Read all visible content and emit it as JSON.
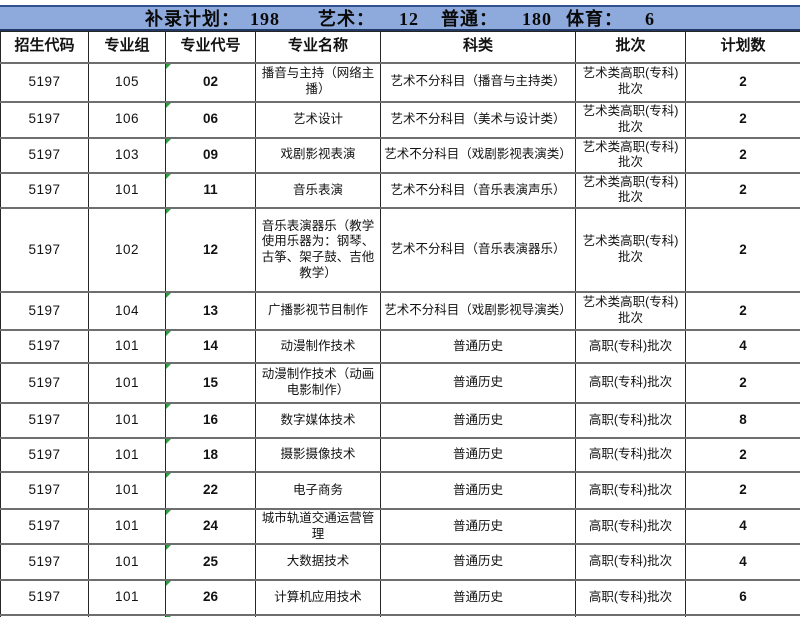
{
  "summary_bar": {
    "items": [
      {
        "label": "补录计划：",
        "value": "198"
      },
      {
        "label": "艺术：",
        "value": "12"
      },
      {
        "label": "普通：",
        "value": "180"
      },
      {
        "label": "体育：",
        "value": "6"
      }
    ]
  },
  "table": {
    "headers": [
      "招生代码",
      "专业组",
      "专业代号",
      "专业名称",
      "科类",
      "批次",
      "计划数"
    ],
    "rows": [
      [
        "5197",
        "105",
        "02",
        "播音与主持（网络主播）",
        "艺术不分科目（播音与主持类）",
        "艺术类高职(专科)批次",
        "2"
      ],
      [
        "5197",
        "106",
        "06",
        "艺术设计",
        "艺术不分科目（美术与设计类）",
        "艺术类高职(专科)批次",
        "2"
      ],
      [
        "5197",
        "103",
        "09",
        "戏剧影视表演",
        "艺术不分科目（戏剧影视表演类）",
        "艺术类高职(专科)批次",
        "2"
      ],
      [
        "5197",
        "101",
        "11",
        "音乐表演",
        "艺术不分科目（音乐表演声乐）",
        "艺术类高职(专科)批次",
        "2"
      ],
      [
        "5197",
        "102",
        "12",
        "音乐表演器乐（教学使用乐器为：钢琴、古筝、架子鼓、吉他教学）",
        "艺术不分科目（音乐表演器乐）",
        "艺术类高职(专科)批次",
        "2"
      ],
      [
        "5197",
        "104",
        "13",
        "广播影视节目制作",
        "艺术不分科目（戏剧影视导演类）",
        "艺术类高职(专科)批次",
        "2"
      ],
      [
        "5197",
        "101",
        "14",
        "动漫制作技术",
        "普通历史",
        "高职(专科)批次",
        "4"
      ],
      [
        "5197",
        "101",
        "15",
        "动漫制作技术（动画电影制作）",
        "普通历史",
        "高职(专科)批次",
        "2"
      ],
      [
        "5197",
        "101",
        "16",
        "数字媒体技术",
        "普通历史",
        "高职(专科)批次",
        "8"
      ],
      [
        "5197",
        "101",
        "18",
        "摄影摄像技术",
        "普通历史",
        "高职(专科)批次",
        "2"
      ],
      [
        "5197",
        "101",
        "22",
        "电子商务",
        "普通历史",
        "高职(专科)批次",
        "2"
      ],
      [
        "5197",
        "101",
        "24",
        "城市轨道交通运营管理",
        "普通历史",
        "高职(专科)批次",
        "4"
      ],
      [
        "5197",
        "101",
        "25",
        "大数据技术",
        "普通历史",
        "高职(专科)批次",
        "4"
      ],
      [
        "5197",
        "101",
        "26",
        "计算机应用技术",
        "普通历史",
        "高职(专科)批次",
        "6"
      ]
    ]
  }
}
